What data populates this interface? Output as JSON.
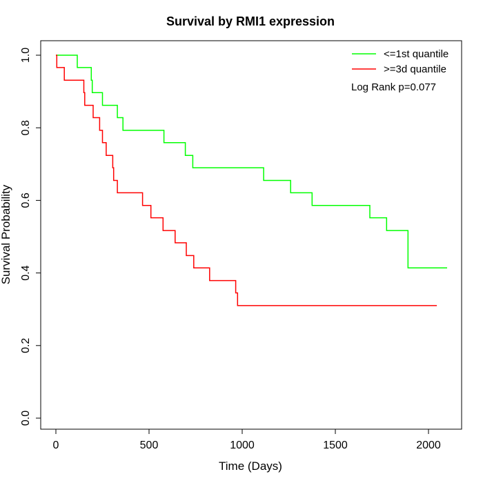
{
  "chart_data": {
    "type": "line",
    "step": true,
    "title": "Survival by RMI1 expression",
    "xlabel": "Time (Days)",
    "ylabel": "Survival Probability",
    "xlim": [
      0,
      2100
    ],
    "ylim": [
      0,
      1
    ],
    "x_ticks": [
      0,
      500,
      1000,
      1500,
      2000
    ],
    "x_tick_labels": [
      "0",
      "500",
      "1000",
      "1500",
      "2000"
    ],
    "y_ticks": [
      0,
      0.2,
      0.4,
      0.6,
      0.8,
      1
    ],
    "y_tick_labels": [
      "0.0",
      "0.2",
      "0.4",
      "0.6",
      "0.8",
      "1.0"
    ],
    "grid": false,
    "legend_position": "top-right",
    "annotation": "Log Rank p=0.077",
    "series": [
      {
        "name": "<=1st quantile",
        "color": "#00ff00",
        "x": [
          0,
          115,
          190,
          195,
          250,
          330,
          360,
          580,
          695,
          735,
          1115,
          1260,
          1375,
          1685,
          1775,
          1890,
          2100
        ],
        "y": [
          1.0,
          0.966,
          0.931,
          0.897,
          0.862,
          0.828,
          0.793,
          0.759,
          0.724,
          0.69,
          0.655,
          0.621,
          0.586,
          0.552,
          0.517,
          0.414,
          0.414
        ]
      },
      {
        "name": ">=3d quantile",
        "color": "#ff0000",
        "x": [
          0,
          5,
          45,
          150,
          155,
          200,
          235,
          250,
          270,
          305,
          310,
          330,
          465,
          510,
          575,
          640,
          700,
          740,
          825,
          965,
          975,
          2045
        ],
        "y": [
          1.0,
          0.966,
          0.931,
          0.897,
          0.862,
          0.828,
          0.793,
          0.759,
          0.724,
          0.69,
          0.655,
          0.621,
          0.586,
          0.552,
          0.517,
          0.483,
          0.448,
          0.414,
          0.379,
          0.345,
          0.31,
          0.31
        ]
      }
    ]
  }
}
